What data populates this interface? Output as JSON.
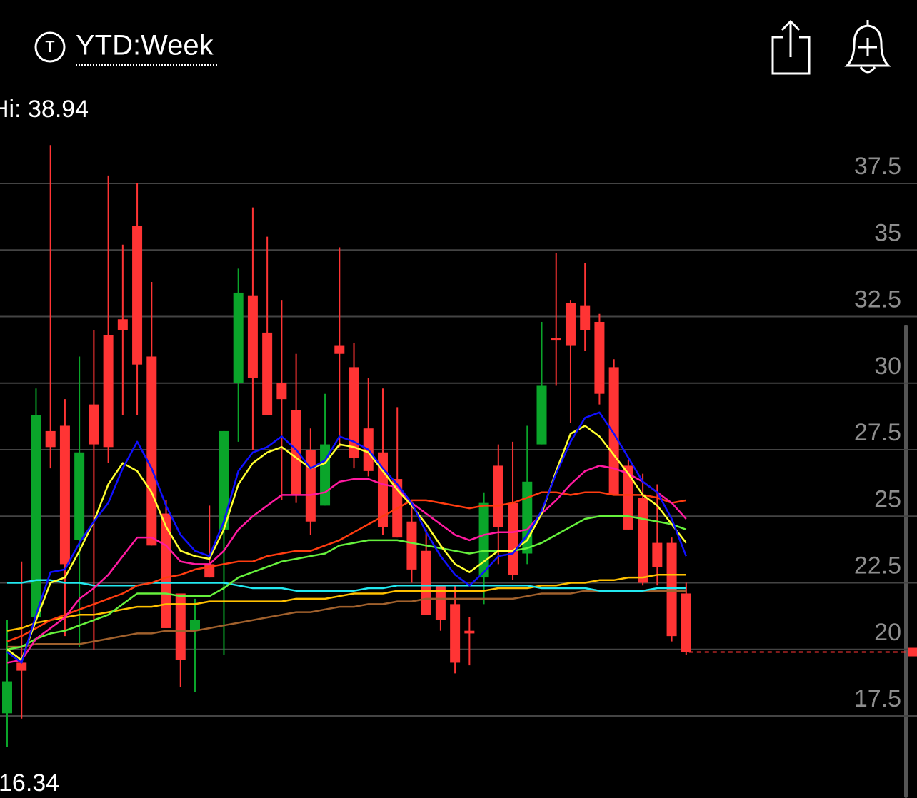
{
  "header": {
    "icon_letter": "T",
    "title": "YTD:Week"
  },
  "chart_data": {
    "type": "candlestick",
    "hi_label": "Hi: 38.94",
    "lo_label": "16.34",
    "up_color": "#0aa52a",
    "down_color": "#ff3434",
    "ylim": [
      16,
      39.2
    ],
    "yticks": [
      17.5,
      20,
      22.5,
      25,
      27.5,
      30,
      32.5,
      35,
      37.5
    ],
    "grid": true,
    "open": [
      17.6,
      19.5,
      21.2,
      28.2,
      28.4,
      24.1,
      29.2,
      31.8,
      32.4,
      35.9,
      31.0,
      25.1,
      22.1,
      20.7,
      23.2,
      24.5,
      30.0,
      33.3,
      31.9,
      30.0,
      29.0,
      27.5,
      25.4,
      31.4,
      30.6,
      28.3,
      27.4,
      26.4,
      24.8,
      23.7,
      22.4,
      21.7,
      20.7,
      22.7,
      26.9,
      25.5,
      23.6,
      27.7,
      31.7,
      33.0,
      32.9,
      32.3,
      30.6,
      26.9,
      25.7,
      24.0,
      24.0,
      22.1
    ],
    "high": [
      21.1,
      23.3,
      29.8,
      38.94,
      29.4,
      31.0,
      32.0,
      37.8,
      35.2,
      37.5,
      33.8,
      25.6,
      22.1,
      21.9,
      25.4,
      28.2,
      34.3,
      36.6,
      35.5,
      33.1,
      31.1,
      28.3,
      29.6,
      35.1,
      31.5,
      30.2,
      29.8,
      29.1,
      25.6,
      24.5,
      22.4,
      22.4,
      21.2,
      25.9,
      27.7,
      27.8,
      28.4,
      32.3,
      34.9,
      33.1,
      34.5,
      32.6,
      30.9,
      27.1,
      26.6,
      26.2,
      24.2,
      22.5
    ],
    "low": [
      16.34,
      17.4,
      21.1,
      26.8,
      20.5,
      20.1,
      20.0,
      27.0,
      28.8,
      28.8,
      23.9,
      20.8,
      18.6,
      18.4,
      22.7,
      19.8,
      27.8,
      27.5,
      28.8,
      25.6,
      25.5,
      24.3,
      25.4,
      27.6,
      26.8,
      26.5,
      24.3,
      24.2,
      22.5,
      21.3,
      20.7,
      19.1,
      19.4,
      21.7,
      23.2,
      22.6,
      23.2,
      27.7,
      29.9,
      28.5,
      31.2,
      29.2,
      25.8,
      24.5,
      22.4,
      22.4,
      20.3,
      19.8
    ],
    "close": [
      18.8,
      19.2,
      28.8,
      27.6,
      23.2,
      27.4,
      27.7,
      27.6,
      32.0,
      30.7,
      23.9,
      20.8,
      19.6,
      21.1,
      22.7,
      28.2,
      33.4,
      30.2,
      28.8,
      29.4,
      25.8,
      24.8,
      27.7,
      31.1,
      27.2,
      26.7,
      24.6,
      24.2,
      23.0,
      21.3,
      21.1,
      19.5,
      20.6,
      25.5,
      24.6,
      22.8,
      26.3,
      29.9,
      31.6,
      31.4,
      32.0,
      29.6,
      25.8,
      24.5,
      22.5,
      23.1,
      20.5,
      19.9
    ],
    "series": [
      {
        "color": "#a0602c",
        "values": [
          20.1,
          20.1,
          20.2,
          20.2,
          20.2,
          20.2,
          20.3,
          20.4,
          20.5,
          20.6,
          20.6,
          20.7,
          20.7,
          20.7,
          20.8,
          20.9,
          21.0,
          21.1,
          21.2,
          21.3,
          21.4,
          21.4,
          21.5,
          21.6,
          21.6,
          21.7,
          21.7,
          21.8,
          21.8,
          21.9,
          21.9,
          21.9,
          21.9,
          21.9,
          21.9,
          21.9,
          22.0,
          22.1,
          22.1,
          22.1,
          22.2,
          22.2,
          22.2,
          22.2,
          22.2,
          22.2,
          22.2,
          22.2
        ]
      },
      {
        "color": "#ffc000",
        "values": [
          20.7,
          20.8,
          21.0,
          21.1,
          21.2,
          21.3,
          21.3,
          21.4,
          21.5,
          21.6,
          21.6,
          21.7,
          21.7,
          21.7,
          21.8,
          21.8,
          21.8,
          21.8,
          21.8,
          21.8,
          21.9,
          21.9,
          21.9,
          22.0,
          22.1,
          22.1,
          22.1,
          22.2,
          22.2,
          22.2,
          22.2,
          22.2,
          22.2,
          22.2,
          22.3,
          22.3,
          22.3,
          22.4,
          22.4,
          22.5,
          22.5,
          22.6,
          22.6,
          22.7,
          22.7,
          22.8,
          22.8,
          22.8
        ]
      },
      {
        "color": "#22e8f0",
        "values": [
          22.5,
          22.5,
          22.6,
          22.6,
          22.5,
          22.5,
          22.4,
          22.4,
          22.4,
          22.4,
          22.5,
          22.5,
          22.5,
          22.5,
          22.5,
          22.5,
          22.4,
          22.3,
          22.3,
          22.3,
          22.2,
          22.2,
          22.2,
          22.2,
          22.2,
          22.3,
          22.3,
          22.4,
          22.4,
          22.4,
          22.4,
          22.4,
          22.4,
          22.4,
          22.4,
          22.4,
          22.4,
          22.3,
          22.3,
          22.3,
          22.3,
          22.2,
          22.2,
          22.2,
          22.2,
          22.3,
          22.3,
          22.3
        ]
      },
      {
        "color": "#66f03c",
        "values": [
          20.0,
          20.1,
          20.4,
          20.6,
          20.7,
          20.9,
          21.1,
          21.3,
          21.7,
          22.1,
          22.1,
          22.1,
          22.0,
          22.0,
          22.0,
          22.3,
          22.7,
          22.9,
          23.1,
          23.3,
          23.4,
          23.5,
          23.6,
          23.9,
          24.0,
          24.1,
          24.1,
          24.1,
          24.0,
          23.9,
          23.8,
          23.7,
          23.6,
          23.7,
          23.7,
          23.7,
          23.8,
          24.0,
          24.3,
          24.6,
          24.9,
          25.0,
          25.0,
          25.0,
          24.9,
          24.8,
          24.7,
          24.5
        ]
      },
      {
        "color": "#ff3c10",
        "values": [
          20.3,
          20.5,
          20.8,
          21.1,
          21.3,
          21.5,
          21.7,
          21.9,
          22.1,
          22.4,
          22.5,
          22.7,
          22.8,
          23.0,
          23.1,
          23.2,
          23.3,
          23.3,
          23.5,
          23.6,
          23.7,
          23.7,
          23.9,
          24.1,
          24.4,
          24.7,
          25.0,
          25.3,
          25.6,
          25.6,
          25.5,
          25.4,
          25.3,
          25.4,
          25.4,
          25.5,
          25.7,
          25.9,
          25.9,
          25.8,
          25.9,
          25.9,
          25.8,
          25.8,
          25.8,
          25.7,
          25.5,
          25.6
        ]
      },
      {
        "color": "#ff1aa0",
        "values": [
          19.5,
          19.6,
          20.4,
          20.8,
          21.2,
          21.9,
          22.3,
          22.8,
          23.5,
          24.2,
          24.2,
          23.9,
          23.3,
          23.2,
          23.2,
          23.7,
          24.5,
          25.0,
          25.4,
          25.8,
          25.8,
          25.8,
          25.9,
          26.3,
          26.4,
          26.4,
          26.2,
          26.1,
          25.5,
          25.1,
          24.7,
          24.3,
          24.1,
          24.3,
          24.4,
          24.4,
          24.5,
          25.1,
          25.6,
          26.2,
          26.7,
          26.9,
          26.8,
          26.6,
          26.3,
          25.9,
          25.5,
          24.9
        ]
      },
      {
        "color": "#ffff30",
        "values": [
          20.0,
          19.6,
          21.1,
          22.5,
          22.7,
          23.7,
          24.8,
          26.2,
          27.0,
          26.7,
          25.9,
          24.6,
          23.7,
          23.5,
          23.4,
          24.5,
          26.2,
          27.0,
          27.4,
          27.6,
          27.2,
          26.8,
          27.0,
          27.7,
          27.6,
          27.4,
          26.7,
          26.0,
          25.4,
          24.7,
          23.9,
          23.2,
          22.9,
          23.3,
          23.7,
          23.7,
          24.1,
          25.1,
          26.7,
          28.1,
          28.4,
          28.0,
          27.3,
          26.6,
          25.8,
          25.4,
          24.7,
          24.0
        ]
      },
      {
        "color": "#1010ff",
        "values": [
          19.9,
          19.5,
          21.3,
          22.9,
          23.0,
          24.0,
          24.8,
          25.5,
          26.8,
          27.8,
          26.8,
          25.4,
          24.3,
          23.7,
          23.5,
          24.8,
          26.7,
          27.4,
          27.6,
          28.0,
          27.5,
          26.8,
          27.1,
          28.0,
          27.8,
          27.5,
          26.8,
          26.2,
          25.5,
          24.4,
          23.5,
          22.8,
          22.4,
          22.9,
          23.5,
          23.6,
          24.3,
          25.2,
          26.6,
          27.8,
          28.7,
          28.9,
          28.1,
          27.2,
          26.3,
          25.9,
          24.9,
          23.5
        ]
      }
    ]
  }
}
